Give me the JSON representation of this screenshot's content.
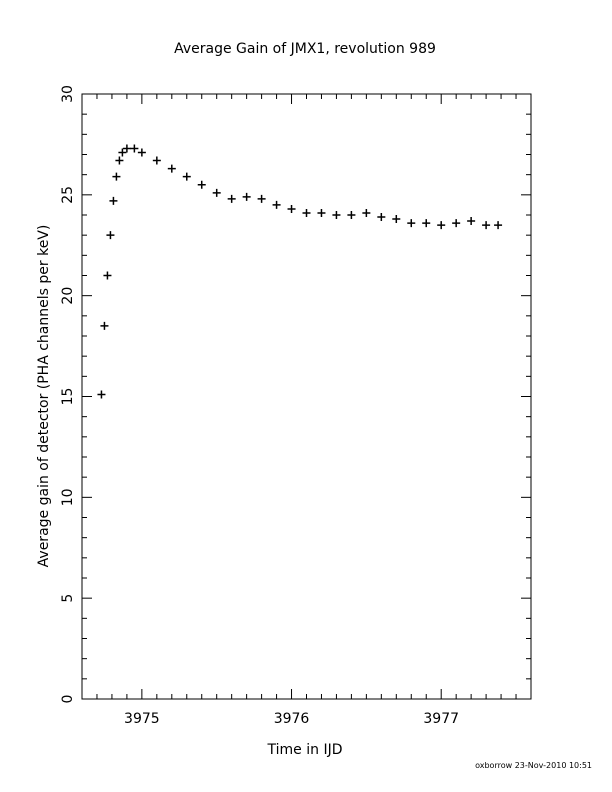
{
  "chart_data": {
    "type": "scatter",
    "title": "Average Gain of JMX1, revolution 989",
    "xlabel": "Time in IJD",
    "ylabel": "Average gain of detector (PHA channels per keV)",
    "xlim": [
      3974.6,
      3977.6
    ],
    "ylim": [
      0,
      30
    ],
    "xticks": [
      3975,
      3976,
      3977
    ],
    "yticks": [
      0,
      5,
      10,
      15,
      20,
      25,
      30
    ],
    "marker": "+",
    "color": "#000000",
    "grid": false,
    "x": [
      3974.73,
      3974.75,
      3974.77,
      3974.79,
      3974.81,
      3974.83,
      3974.85,
      3974.87,
      3974.9,
      3974.95,
      3975.0,
      3975.1,
      3975.2,
      3975.3,
      3975.4,
      3975.5,
      3975.6,
      3975.7,
      3975.8,
      3975.9,
      3976.0,
      3976.1,
      3976.2,
      3976.3,
      3976.4,
      3976.5,
      3976.6,
      3976.7,
      3976.8,
      3976.9,
      3977.0,
      3977.1,
      3977.2,
      3977.3,
      3977.38
    ],
    "y": [
      15.1,
      18.5,
      21.0,
      23.0,
      24.7,
      25.9,
      26.7,
      27.1,
      27.3,
      27.3,
      27.1,
      26.7,
      26.3,
      25.9,
      25.5,
      25.1,
      24.8,
      24.9,
      24.8,
      24.5,
      24.3,
      24.1,
      24.1,
      24.0,
      24.0,
      24.1,
      23.9,
      23.8,
      23.6,
      23.6,
      23.5,
      23.6,
      23.7,
      23.5,
      23.5
    ]
  },
  "footer": "oxborrow 23-Nov-2010 10:51"
}
